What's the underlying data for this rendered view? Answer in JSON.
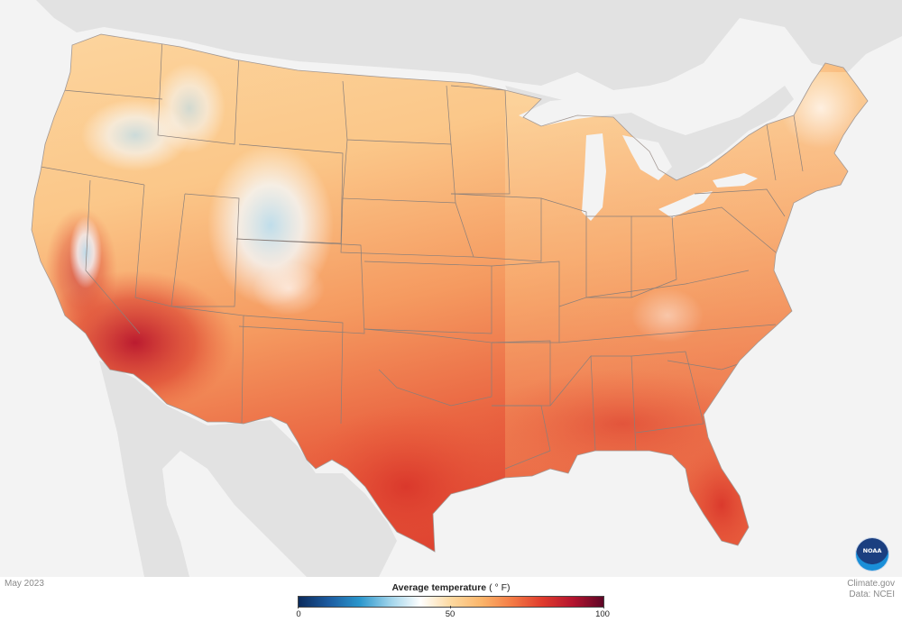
{
  "map": {
    "date": "May 2023",
    "region": "Contiguous United States",
    "variable": "average-temperature"
  },
  "legend": {
    "title": "Average temperature",
    "unit": "( ° F)",
    "min_label": "0",
    "mid_label": "50",
    "max_label": "100",
    "range": [
      0,
      100
    ],
    "colors": [
      "#0b2b5c",
      "#1c5ba0",
      "#2a96cc",
      "#9ed3ea",
      "#ffffff",
      "#fdd9a0",
      "#fbb56a",
      "#f47b45",
      "#df3b2d",
      "#b4142e",
      "#5d0626"
    ]
  },
  "credit": {
    "site": "Climate.gov",
    "source": "Data: NCEI"
  },
  "logo": {
    "icon": "noaa-logo-icon",
    "text": "NOAA"
  },
  "colors": {
    "land_background": "#e2e2e2",
    "water_background": "#f3f3f3",
    "state_border": "#8a7f7a"
  }
}
